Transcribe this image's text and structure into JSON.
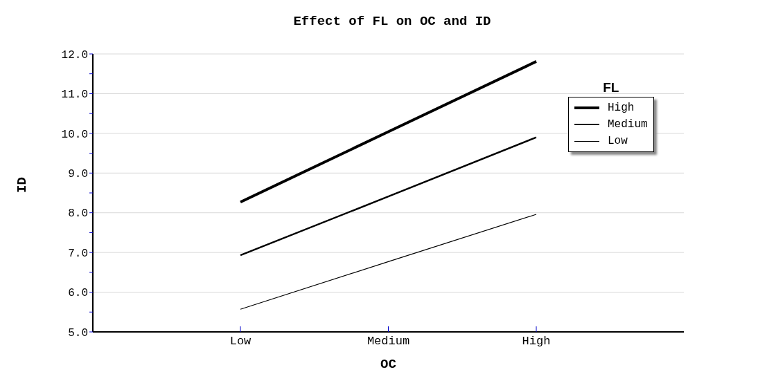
{
  "chart_data": {
    "type": "line",
    "title": "Effect of FL on OC and ID",
    "xlabel": "OC",
    "ylabel": "ID",
    "legend_title": "FL",
    "categories": [
      "Low",
      "Medium",
      "High"
    ],
    "series": [
      {
        "name": "High",
        "color": "#000000",
        "values": [
          8.27,
          10.04,
          11.81
        ]
      },
      {
        "name": "Medium",
        "color": "#000000",
        "values": [
          6.93,
          8.41,
          9.9
        ]
      },
      {
        "name": "Low",
        "color": "#000000",
        "values": [
          5.57,
          6.77,
          7.96
        ]
      }
    ],
    "ylim": [
      5,
      12
    ],
    "yticks": [
      {
        "value": 5,
        "label": "5.0"
      },
      {
        "value": 5.5,
        "label": null
      },
      {
        "value": 6,
        "label": "6.0"
      },
      {
        "value": 6.5,
        "label": null
      },
      {
        "value": 7,
        "label": "7.0"
      },
      {
        "value": 7.5,
        "label": null
      },
      {
        "value": 8,
        "label": "8.0"
      },
      {
        "value": 8.5,
        "label": null
      },
      {
        "value": 9,
        "label": "9.0"
      },
      {
        "value": 9.5,
        "label": null
      },
      {
        "value": 10,
        "label": "10.0"
      },
      {
        "value": 10.5,
        "label": null
      },
      {
        "value": 11,
        "label": "11.0"
      },
      {
        "value": 11.5,
        "label": null
      },
      {
        "value": 12,
        "label": "12.0"
      }
    ],
    "grid": "y",
    "legend": "top right",
    "marker": "none",
    "line_style": "solid"
  }
}
